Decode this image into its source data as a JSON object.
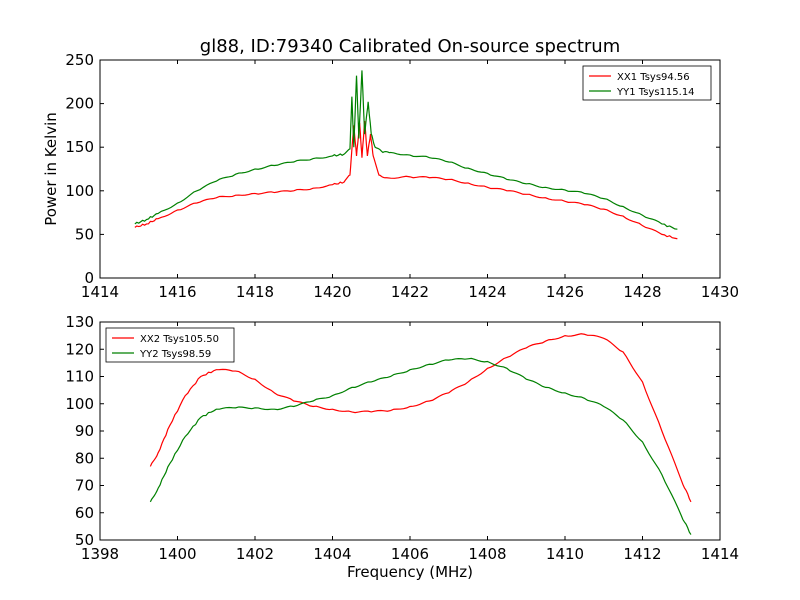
{
  "figure": {
    "title": "gl88, ID:79340 Calibrated On-source spectrum",
    "xlabel": "Frequency (MHz)"
  },
  "chart_data": [
    {
      "type": "line",
      "title": "gl88, ID:79340 Calibrated On-source spectrum",
      "xlabel": "",
      "ylabel": "Power in Kelvin",
      "xlim": [
        1414,
        1430
      ],
      "ylim": [
        0,
        250
      ],
      "xticks": [
        1414,
        1416,
        1418,
        1420,
        1422,
        1424,
        1426,
        1428,
        1430
      ],
      "yticks": [
        0,
        50,
        100,
        150,
        200,
        250
      ],
      "legend_position": "top-right",
      "grid": false,
      "series": [
        {
          "name": "XX1 Tsys94.56",
          "color": "#ff0000",
          "points": [
            [
              1414.9,
              58
            ],
            [
              1415.2,
              62
            ],
            [
              1415.5,
              68
            ],
            [
              1416,
              78
            ],
            [
              1416.5,
              86
            ],
            [
              1417,
              92
            ],
            [
              1417.5,
              95
            ],
            [
              1418,
              97
            ],
            [
              1418.5,
              98
            ],
            [
              1419,
              100
            ],
            [
              1419.5,
              103
            ],
            [
              1420,
              107
            ],
            [
              1420.3,
              110
            ],
            [
              1420.45,
              118
            ],
            [
              1420.55,
              175
            ],
            [
              1420.62,
              140
            ],
            [
              1420.7,
              178
            ],
            [
              1420.76,
              138
            ],
            [
              1420.83,
              180
            ],
            [
              1420.9,
              140
            ],
            [
              1420.98,
              165
            ],
            [
              1421.05,
              140
            ],
            [
              1421.2,
              118
            ],
            [
              1421.4,
              115
            ],
            [
              1422,
              116
            ],
            [
              1422.5,
              115
            ],
            [
              1423,
              113
            ],
            [
              1423.5,
              109
            ],
            [
              1424,
              104
            ],
            [
              1424.5,
              100
            ],
            [
              1425,
              96
            ],
            [
              1425.5,
              92
            ],
            [
              1426,
              88
            ],
            [
              1426.5,
              84
            ],
            [
              1427,
              79
            ],
            [
              1427.5,
              71
            ],
            [
              1428,
              60
            ],
            [
              1428.5,
              50
            ],
            [
              1428.9,
              45
            ]
          ]
        },
        {
          "name": "YY1 Tsys115.14",
          "color": "#008000",
          "points": [
            [
              1414.9,
              62
            ],
            [
              1415.2,
              67
            ],
            [
              1415.5,
              74
            ],
            [
              1416,
              86
            ],
            [
              1416.5,
              100
            ],
            [
              1417,
              111
            ],
            [
              1417.5,
              119
            ],
            [
              1418,
              125
            ],
            [
              1418.5,
              129
            ],
            [
              1419,
              133
            ],
            [
              1419.5,
              137
            ],
            [
              1420,
              140
            ],
            [
              1420.3,
              142
            ],
            [
              1420.45,
              148
            ],
            [
              1420.5,
              208
            ],
            [
              1420.55,
              150
            ],
            [
              1420.62,
              232
            ],
            [
              1420.68,
              160
            ],
            [
              1420.76,
              238
            ],
            [
              1420.83,
              165
            ],
            [
              1420.92,
              202
            ],
            [
              1421,
              165
            ],
            [
              1421.1,
              150
            ],
            [
              1421.3,
              144
            ],
            [
              1421.5,
              144
            ],
            [
              1422,
              141
            ],
            [
              1422.5,
              138
            ],
            [
              1423,
              133
            ],
            [
              1423.5,
              126
            ],
            [
              1424,
              120
            ],
            [
              1424.5,
              113
            ],
            [
              1425,
              108
            ],
            [
              1425.5,
              104
            ],
            [
              1426,
              101
            ],
            [
              1426.5,
              97
            ],
            [
              1427,
              91
            ],
            [
              1427.5,
              82
            ],
            [
              1428,
              72
            ],
            [
              1428.5,
              62
            ],
            [
              1428.9,
              56
            ]
          ]
        }
      ]
    },
    {
      "type": "line",
      "title": "",
      "xlabel": "Frequency (MHz)",
      "ylabel": "",
      "xlim": [
        1398,
        1414
      ],
      "ylim": [
        50,
        130
      ],
      "xticks": [
        1398,
        1400,
        1402,
        1404,
        1406,
        1408,
        1410,
        1412,
        1414
      ],
      "yticks": [
        50,
        60,
        70,
        80,
        90,
        100,
        110,
        120,
        130
      ],
      "legend_position": "top-left",
      "grid": false,
      "series": [
        {
          "name": "XX2 Tsys105.50",
          "color": "#ff0000",
          "points": [
            [
              1399.3,
              77
            ],
            [
              1399.5,
              82
            ],
            [
              1399.8,
              92
            ],
            [
              1400.2,
              103
            ],
            [
              1400.6,
              110
            ],
            [
              1401,
              112.5
            ],
            [
              1401.5,
              112
            ],
            [
              1402,
              109
            ],
            [
              1402.5,
              104
            ],
            [
              1403,
              101
            ],
            [
              1403.5,
              99
            ],
            [
              1404,
              98
            ],
            [
              1404.5,
              97
            ],
            [
              1405,
              97
            ],
            [
              1405.5,
              97.5
            ],
            [
              1406,
              99
            ],
            [
              1406.5,
              101
            ],
            [
              1407,
              104
            ],
            [
              1407.5,
              108
            ],
            [
              1408,
              113
            ],
            [
              1408.5,
              117
            ],
            [
              1409,
              120.5
            ],
            [
              1409.5,
              123
            ],
            [
              1410,
              125
            ],
            [
              1410.5,
              125.5
            ],
            [
              1411,
              124
            ],
            [
              1411.5,
              119
            ],
            [
              1412,
              108
            ],
            [
              1412.5,
              90
            ],
            [
              1413,
              72
            ],
            [
              1413.25,
              64
            ]
          ]
        },
        {
          "name": "YY2 Tsys98.59",
          "color": "#008000",
          "points": [
            [
              1399.3,
              64
            ],
            [
              1399.5,
              69
            ],
            [
              1399.8,
              78
            ],
            [
              1400.2,
              88
            ],
            [
              1400.6,
              95
            ],
            [
              1401,
              98
            ],
            [
              1401.5,
              98.5
            ],
            [
              1402,
              98.5
            ],
            [
              1402.5,
              98
            ],
            [
              1403,
              99
            ],
            [
              1403.5,
              101
            ],
            [
              1404,
              103
            ],
            [
              1404.5,
              106
            ],
            [
              1405,
              108
            ],
            [
              1405.5,
              110
            ],
            [
              1406,
              112.5
            ],
            [
              1406.5,
              114.5
            ],
            [
              1407,
              116
            ],
            [
              1407.5,
              116.5
            ],
            [
              1408,
              115.5
            ],
            [
              1408.5,
              113
            ],
            [
              1409,
              109
            ],
            [
              1409.5,
              106
            ],
            [
              1410,
              104
            ],
            [
              1410.5,
              102
            ],
            [
              1411,
              99
            ],
            [
              1411.5,
              94
            ],
            [
              1412,
              86
            ],
            [
              1412.5,
              74
            ],
            [
              1413,
              59
            ],
            [
              1413.25,
              52
            ]
          ]
        }
      ]
    }
  ]
}
